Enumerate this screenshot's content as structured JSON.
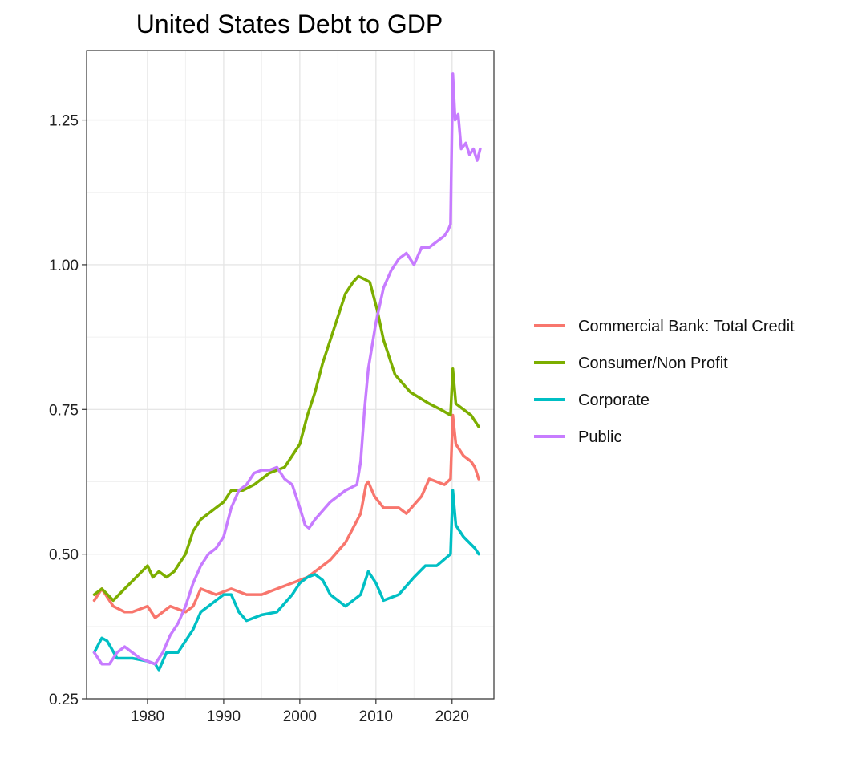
{
  "chart_data": {
    "type": "line",
    "title": "United States Debt to GDP",
    "xlabel": "",
    "ylabel": "",
    "xlim": [
      1972,
      2025.5
    ],
    "ylim": [
      0.25,
      1.37
    ],
    "x_ticks": [
      1980,
      1990,
      2000,
      2010,
      2020
    ],
    "y_ticks": [
      0.25,
      0.5,
      0.75,
      1.0,
      1.25
    ],
    "x_tick_labels": [
      "1980",
      "1990",
      "2000",
      "2010",
      "2020"
    ],
    "y_tick_labels": [
      "0.25",
      "0.50",
      "0.75",
      "1.00",
      "1.25"
    ],
    "grid": true,
    "legend_position": "right",
    "series": [
      {
        "name": "Commercial Bank: Total Credit",
        "color": "#F8766D",
        "x": [
          1973,
          1974,
          1974.5,
          1975.5,
          1977,
          1978,
          1980,
          1981,
          1982,
          1983,
          1985,
          1986,
          1987,
          1989,
          1991,
          1993,
          1995,
          1997,
          1999,
          2001,
          2002,
          2003,
          2004,
          2006,
          2008,
          2008.7,
          2009,
          2009.8,
          2011,
          2013,
          2014,
          2016,
          2017,
          2019,
          2019.8,
          2020.1,
          2020.5,
          2021.5,
          2022.5,
          2023,
          2023.5
        ],
        "y": [
          0.42,
          0.44,
          0.43,
          0.41,
          0.4,
          0.4,
          0.41,
          0.39,
          0.4,
          0.41,
          0.4,
          0.41,
          0.44,
          0.43,
          0.44,
          0.43,
          0.43,
          0.44,
          0.45,
          0.46,
          0.47,
          0.48,
          0.49,
          0.52,
          0.57,
          0.62,
          0.625,
          0.6,
          0.58,
          0.58,
          0.57,
          0.6,
          0.63,
          0.62,
          0.63,
          0.74,
          0.69,
          0.67,
          0.66,
          0.65,
          0.63
        ]
      },
      {
        "name": "Consumer/Non Profit",
        "color": "#7CAE00",
        "x": [
          1973,
          1974,
          1975.5,
          1977,
          1980,
          1980.7,
          1981.5,
          1982.5,
          1983.5,
          1985,
          1986,
          1987,
          1988,
          1990,
          1991,
          1992.5,
          1994,
          1996,
          1998,
          1999,
          2000,
          2001,
          2002,
          2003,
          2004,
          2005,
          2006,
          2007,
          2007.7,
          2008.5,
          2009.2,
          2010.2,
          2011,
          2012.5,
          2014.5,
          2017,
          2018.5,
          2019.8,
          2020.1,
          2020.5,
          2021.5,
          2022.5,
          2023.5
        ],
        "y": [
          0.43,
          0.44,
          0.42,
          0.44,
          0.48,
          0.46,
          0.47,
          0.46,
          0.47,
          0.5,
          0.54,
          0.56,
          0.57,
          0.59,
          0.61,
          0.61,
          0.62,
          0.64,
          0.65,
          0.67,
          0.69,
          0.74,
          0.78,
          0.83,
          0.87,
          0.91,
          0.95,
          0.97,
          0.98,
          0.975,
          0.97,
          0.92,
          0.87,
          0.81,
          0.78,
          0.76,
          0.75,
          0.74,
          0.82,
          0.76,
          0.75,
          0.74,
          0.72
        ]
      },
      {
        "name": "Corporate",
        "color": "#00BFC4",
        "x": [
          1973,
          1974,
          1974.7,
          1976,
          1978,
          1980,
          1981,
          1981.5,
          1982.5,
          1984,
          1986,
          1987,
          1988,
          1990,
          1991,
          1992,
          1993,
          1995,
          1997,
          1999,
          2000,
          2001,
          2002,
          2003,
          2004,
          2006,
          2008,
          2009,
          2010,
          2011,
          2013,
          2015,
          2016.5,
          2018,
          2019.8,
          2020.1,
          2020.5,
          2021.5,
          2023,
          2023.5
        ],
        "y": [
          0.33,
          0.355,
          0.35,
          0.32,
          0.32,
          0.315,
          0.31,
          0.3,
          0.33,
          0.33,
          0.37,
          0.4,
          0.41,
          0.43,
          0.43,
          0.4,
          0.385,
          0.395,
          0.4,
          0.43,
          0.45,
          0.46,
          0.465,
          0.455,
          0.43,
          0.41,
          0.43,
          0.47,
          0.45,
          0.42,
          0.43,
          0.46,
          0.48,
          0.48,
          0.5,
          0.61,
          0.55,
          0.53,
          0.51,
          0.5
        ]
      },
      {
        "name": "Public",
        "color": "#C77CFF",
        "x": [
          1973,
          1974,
          1975,
          1976,
          1977,
          1978,
          1979,
          1981,
          1982,
          1983,
          1984,
          1985,
          1986,
          1987,
          1988,
          1989,
          1990,
          1991,
          1992,
          1993,
          1994,
          1995,
          1996,
          1997,
          1998,
          1999,
          2000,
          2000.7,
          2001.2,
          2002,
          2004,
          2006,
          2007.5,
          2008,
          2008.5,
          2009,
          2010,
          2011,
          2012,
          2013,
          2014,
          2015,
          2016,
          2017,
          2018,
          2019,
          2019.5,
          2019.8,
          2020.1,
          2020.4,
          2020.8,
          2021.2,
          2021.8,
          2022.3,
          2022.8,
          2023.3,
          2023.7
        ],
        "y": [
          0.33,
          0.31,
          0.31,
          0.33,
          0.34,
          0.33,
          0.32,
          0.31,
          0.33,
          0.36,
          0.38,
          0.41,
          0.45,
          0.48,
          0.5,
          0.51,
          0.53,
          0.58,
          0.61,
          0.62,
          0.64,
          0.645,
          0.645,
          0.65,
          0.63,
          0.62,
          0.58,
          0.55,
          0.545,
          0.56,
          0.59,
          0.61,
          0.62,
          0.66,
          0.75,
          0.82,
          0.9,
          0.96,
          0.99,
          1.01,
          1.02,
          1.0,
          1.03,
          1.03,
          1.04,
          1.05,
          1.06,
          1.07,
          1.33,
          1.25,
          1.26,
          1.2,
          1.21,
          1.19,
          1.2,
          1.18,
          1.2
        ]
      }
    ]
  }
}
